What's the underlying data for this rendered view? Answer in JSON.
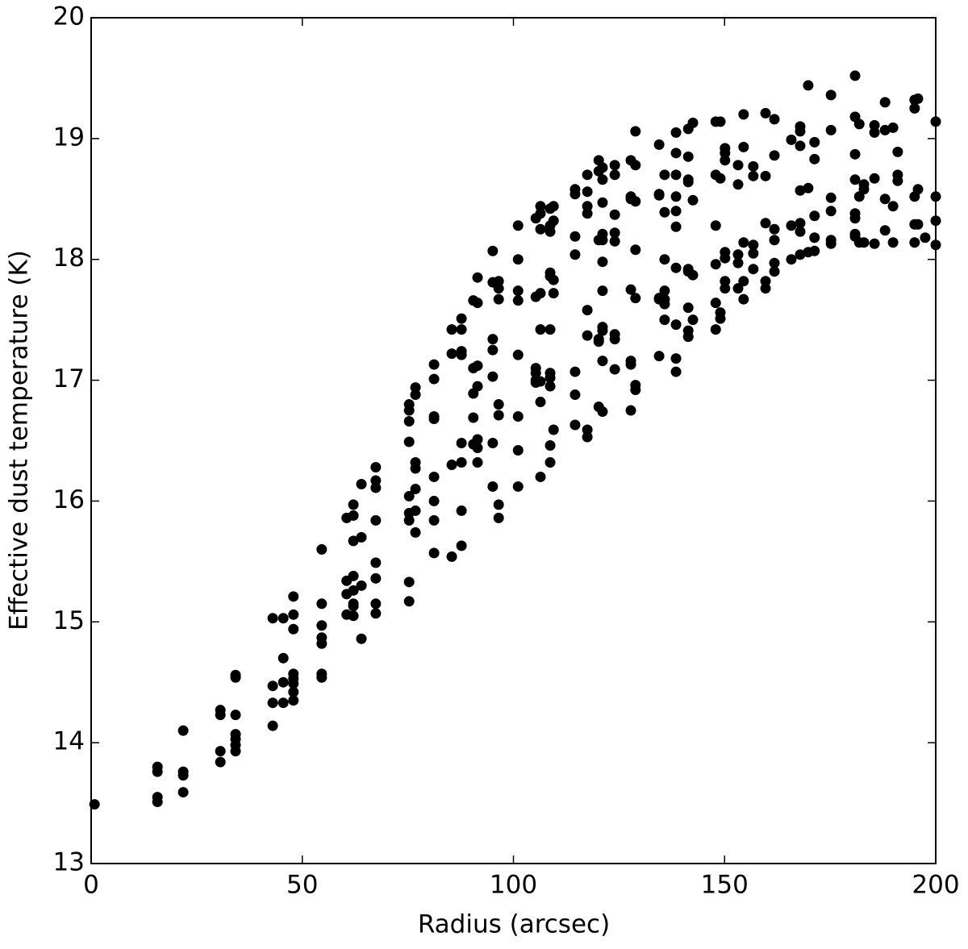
{
  "chart_data": {
    "type": "scatter",
    "xlabel": "Radius (arcsec)",
    "ylabel": "Effective dust temperature (K)",
    "xlim": [
      0,
      200
    ],
    "xticks": [
      0,
      50,
      100,
      150,
      200
    ],
    "ylim": [
      13,
      20
    ],
    "yticks": [
      13,
      14,
      15,
      16,
      17,
      18,
      19,
      20
    ],
    "series": [
      {
        "color": "#000000",
        "x": [
          0.8,
          15.7,
          15.7,
          15.7,
          15.7,
          21.8,
          21.8,
          21.8,
          21.8,
          30.6,
          30.6,
          30.6,
          30.6,
          34.2,
          34.2,
          34.2,
          34.2,
          34.2,
          34.2,
          34.2,
          43.0,
          43.0,
          43.0,
          43.0,
          45.5,
          45.5,
          45.5,
          45.5,
          47.9,
          47.9,
          47.9,
          47.9,
          47.9,
          47.9,
          47.9,
          47.9,
          54.6,
          54.6,
          54.6,
          54.6,
          54.6,
          54.6,
          54.6,
          60.5,
          60.5,
          60.5,
          60.5,
          62.1,
          62.1,
          62.1,
          62.1,
          62.1,
          62.1,
          62.1,
          62.1,
          64.0,
          64.0,
          64.0,
          64.0,
          67.4,
          67.4,
          67.4,
          67.4,
          67.4,
          67.4,
          67.4,
          67.4,
          75.3,
          75.3,
          75.3,
          75.3,
          75.3,
          75.3,
          75.3,
          75.3,
          75.3,
          76.8,
          76.8,
          76.8,
          76.8,
          76.8,
          76.8,
          76.8,
          81.2,
          81.2,
          81.2,
          81.2,
          81.2,
          81.2,
          81.2,
          81.2,
          85.4,
          85.4,
          85.4,
          85.4,
          87.7,
          87.7,
          87.7,
          87.7,
          87.7,
          87.7,
          87.7,
          87.7,
          90.5,
          90.5,
          90.5,
          90.5,
          90.5,
          91.5,
          91.5,
          91.5,
          91.5,
          91.5,
          91.5,
          91.5,
          95.1,
          95.1,
          95.1,
          95.1,
          95.1,
          95.1,
          95.1,
          96.5,
          96.5,
          96.5,
          96.5,
          96.5,
          96.5,
          96.5,
          101.1,
          101.1,
          101.1,
          101.1,
          101.1,
          101.1,
          101.1,
          101.1,
          105.3,
          105.3,
          105.3,
          105.3,
          105.3,
          105.3,
          106.4,
          106.4,
          106.4,
          106.4,
          106.4,
          106.4,
          106.4,
          106.4,
          108.7,
          108.7,
          108.7,
          108.7,
          108.7,
          108.7,
          108.7,
          108.7,
          108.7,
          108.7,
          108.7,
          109.5,
          109.5,
          109.5,
          109.5,
          109.5,
          114.6,
          114.6,
          114.6,
          114.6,
          114.6,
          114.6,
          114.6,
          117.5,
          117.5,
          117.5,
          117.5,
          117.5,
          117.5,
          117.5,
          117.5,
          120.2,
          120.2,
          120.2,
          120.2,
          120.2,
          120.2,
          121.1,
          121.1,
          121.1,
          121.1,
          121.1,
          121.1,
          121.1,
          121.1,
          121.1,
          121.1,
          121.1,
          124.0,
          124.0,
          124.0,
          124.0,
          124.0,
          124.0,
          124.0,
          124.0,
          127.8,
          127.8,
          127.8,
          127.8,
          127.8,
          127.8,
          127.8,
          128.9,
          128.9,
          128.9,
          128.9,
          128.9,
          128.9,
          128.9,
          134.5,
          134.5,
          134.5,
          134.5,
          134.5,
          134.5,
          135.8,
          135.8,
          135.8,
          135.8,
          135.8,
          135.8,
          135.8,
          138.5,
          138.5,
          138.5,
          138.5,
          138.5,
          138.5,
          138.5,
          138.5,
          138.5,
          138.5,
          141.4,
          141.4,
          141.4,
          141.4,
          141.4,
          141.4,
          141.4,
          141.4,
          141.4,
          142.5,
          142.5,
          142.5,
          142.5,
          147.9,
          147.9,
          147.9,
          147.9,
          147.9,
          147.9,
          149.0,
          149.0,
          149.0,
          149.0,
          150.1,
          150.1,
          150.1,
          150.1,
          150.1,
          150.1,
          150.1,
          153.2,
          153.2,
          153.2,
          153.2,
          153.2,
          154.5,
          154.5,
          154.5,
          154.5,
          154.5,
          156.8,
          156.8,
          156.8,
          156.8,
          156.8,
          159.7,
          159.7,
          159.7,
          159.7,
          159.7,
          161.8,
          161.8,
          161.8,
          161.8,
          161.8,
          161.8,
          165.8,
          165.8,
          165.8,
          167.9,
          167.9,
          167.9,
          167.9,
          167.9,
          167.9,
          167.9,
          169.8,
          169.8,
          169.8,
          171.3,
          171.3,
          171.3,
          171.3,
          171.3,
          175.2,
          175.2,
          175.2,
          175.2,
          175.2,
          175.2,
          180.9,
          180.9,
          180.9,
          180.9,
          180.9,
          180.9,
          180.9,
          180.9,
          181.9,
          181.9,
          181.9,
          183.0,
          183.0,
          183.0,
          185.5,
          185.5,
          185.5,
          185.5,
          188.0,
          188.0,
          188.0,
          188.0,
          189.9,
          189.9,
          189.9,
          191.0,
          191.0,
          191.0,
          195.0,
          195.0,
          195.0,
          195.0,
          195.0,
          195.8,
          195.8,
          195.8,
          197.5,
          200.0,
          200.0,
          200.0,
          200.0
        ],
        "values": [
          13.49,
          13.8,
          13.76,
          13.55,
          13.51,
          14.1,
          13.76,
          13.73,
          13.59,
          14.27,
          14.23,
          13.93,
          13.84,
          14.56,
          14.54,
          14.23,
          14.07,
          14.03,
          13.98,
          13.93,
          15.03,
          14.47,
          14.33,
          14.14,
          15.03,
          14.7,
          14.5,
          14.33,
          15.21,
          15.06,
          14.94,
          14.57,
          14.53,
          14.49,
          14.42,
          14.35,
          15.6,
          15.15,
          14.97,
          14.87,
          14.82,
          14.57,
          14.54,
          15.86,
          15.34,
          15.23,
          15.06,
          15.97,
          15.88,
          15.67,
          15.38,
          15.26,
          15.15,
          15.13,
          15.05,
          16.14,
          15.7,
          15.3,
          14.86,
          16.28,
          16.17,
          16.11,
          15.84,
          15.49,
          15.36,
          15.15,
          15.07,
          16.8,
          16.75,
          16.66,
          16.49,
          16.04,
          15.9,
          15.84,
          15.33,
          15.17,
          16.94,
          16.88,
          16.32,
          16.27,
          16.1,
          15.92,
          15.74,
          17.13,
          17.01,
          16.7,
          16.68,
          16.2,
          16.0,
          15.84,
          15.57,
          17.42,
          17.22,
          16.3,
          15.54,
          17.51,
          17.42,
          17.24,
          17.21,
          16.48,
          16.32,
          15.92,
          15.63,
          17.66,
          17.1,
          16.89,
          16.69,
          16.47,
          17.85,
          17.64,
          17.12,
          16.95,
          16.51,
          16.44,
          16.32,
          18.07,
          17.81,
          17.34,
          17.25,
          17.03,
          16.48,
          16.12,
          17.82,
          17.76,
          17.67,
          16.8,
          16.71,
          15.97,
          15.86,
          18.28,
          18.0,
          17.74,
          17.66,
          17.21,
          16.7,
          16.42,
          16.12,
          18.34,
          17.69,
          17.1,
          17.06,
          17.0,
          16.98,
          18.44,
          18.38,
          18.25,
          17.72,
          17.42,
          16.99,
          16.82,
          16.2,
          18.42,
          18.28,
          18.23,
          17.89,
          17.86,
          17.42,
          17.06,
          17.02,
          16.95,
          16.46,
          16.32,
          18.44,
          18.32,
          17.83,
          17.72,
          16.59,
          18.58,
          18.54,
          18.19,
          18.04,
          17.07,
          16.88,
          16.63,
          18.7,
          18.56,
          18.44,
          18.38,
          17.58,
          17.37,
          16.59,
          16.53,
          18.82,
          18.73,
          18.16,
          17.34,
          17.32,
          16.78,
          18.76,
          18.66,
          18.47,
          18.21,
          18.16,
          17.98,
          17.74,
          17.44,
          17.41,
          17.16,
          16.74,
          18.78,
          18.7,
          18.37,
          18.22,
          18.15,
          17.38,
          17.34,
          17.09,
          18.82,
          18.52,
          18.5,
          17.75,
          17.16,
          17.13,
          16.75,
          19.06,
          18.78,
          18.48,
          18.08,
          17.68,
          16.96,
          16.92,
          18.95,
          18.54,
          18.53,
          17.68,
          17.67,
          17.2,
          18.7,
          18.39,
          18.0,
          17.74,
          17.67,
          17.63,
          17.5,
          19.05,
          18.88,
          18.7,
          18.52,
          18.4,
          18.27,
          17.93,
          17.46,
          17.18,
          17.07,
          19.08,
          18.85,
          18.66,
          18.64,
          17.92,
          17.9,
          17.6,
          17.41,
          17.36,
          19.13,
          18.49,
          17.87,
          17.5,
          19.14,
          18.7,
          18.28,
          17.96,
          17.64,
          17.42,
          19.14,
          18.67,
          17.56,
          17.51,
          18.92,
          18.88,
          18.82,
          18.06,
          18.01,
          17.82,
          17.76,
          18.78,
          18.62,
          18.04,
          17.97,
          17.76,
          19.2,
          18.93,
          18.14,
          17.82,
          17.67,
          18.77,
          18.69,
          18.12,
          18.05,
          17.92,
          19.21,
          18.69,
          18.3,
          17.82,
          17.76,
          19.16,
          18.86,
          18.25,
          18.16,
          17.97,
          17.9,
          18.99,
          18.28,
          18.0,
          19.1,
          19.06,
          18.94,
          18.57,
          18.3,
          18.23,
          18.04,
          19.44,
          18.59,
          18.06,
          18.97,
          18.83,
          18.36,
          18.18,
          18.07,
          19.36,
          19.07,
          18.51,
          18.4,
          18.16,
          18.13,
          19.52,
          19.18,
          18.87,
          18.66,
          18.38,
          18.34,
          18.21,
          18.19,
          19.12,
          18.52,
          18.14,
          18.62,
          18.58,
          18.14,
          19.11,
          19.05,
          18.67,
          18.13,
          19.3,
          19.07,
          18.5,
          18.24,
          19.09,
          18.44,
          18.14,
          18.89,
          18.7,
          18.65,
          19.32,
          19.25,
          18.52,
          18.29,
          18.14,
          19.33,
          18.58,
          18.29,
          18.18,
          19.14,
          18.52,
          18.32,
          18.12
        ]
      }
    ]
  }
}
